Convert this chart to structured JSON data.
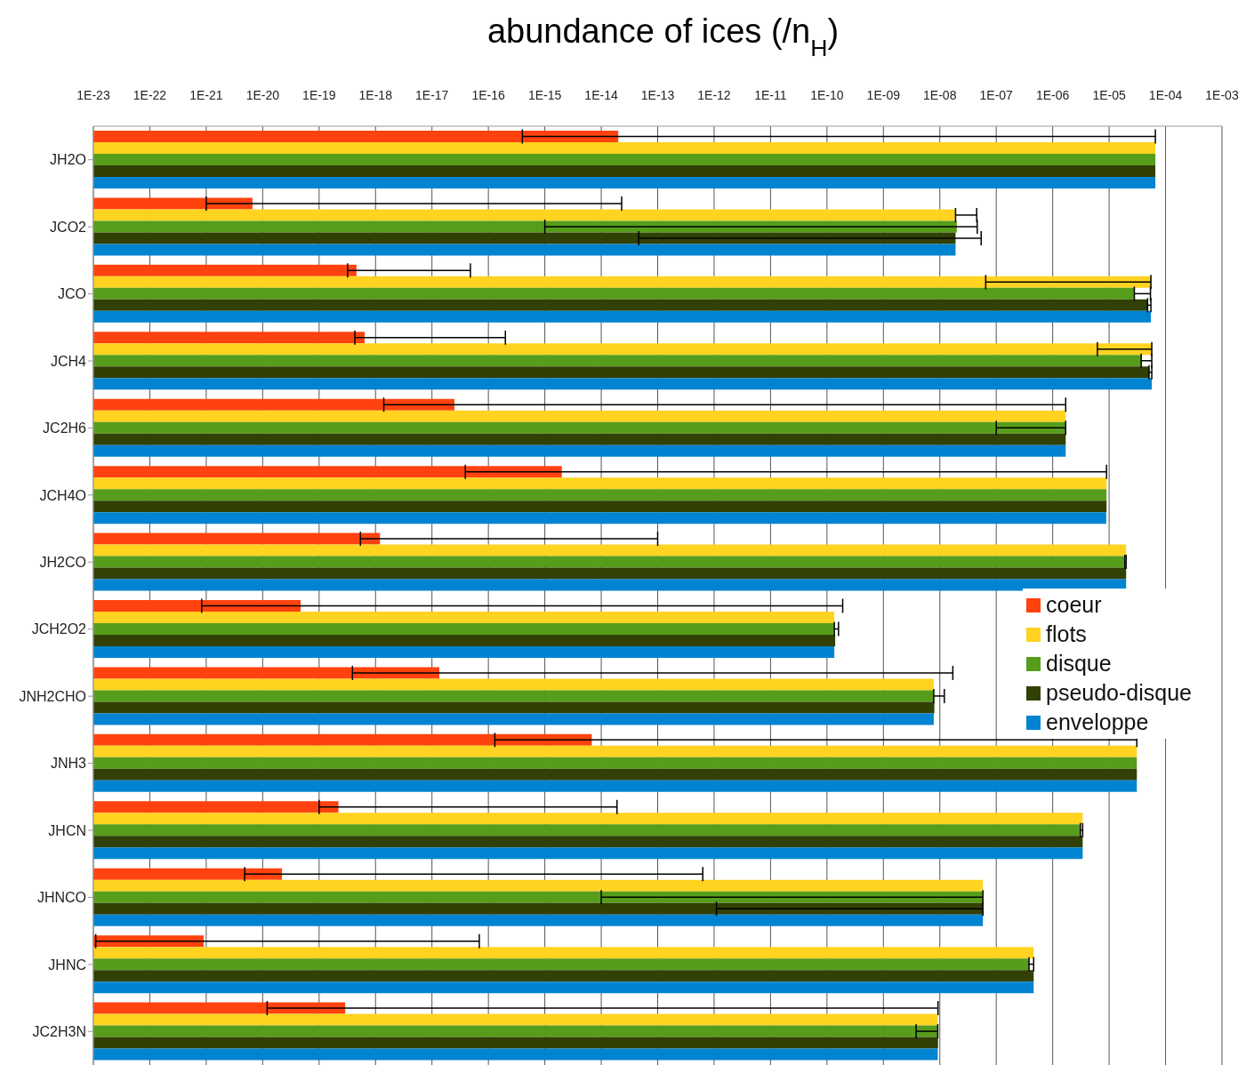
{
  "chart_data": {
    "type": "bar",
    "orientation": "horizontal",
    "log": "x",
    "title": "abundance of ices (/n$_{H}$)",
    "categories": [
      "JH2O",
      "JCO2",
      "JCO",
      "JCH4",
      "JC2H6",
      "JCH4O",
      "JH2CO",
      "JCH2O2",
      "JNH2CHO",
      "JNH3",
      "JHCN",
      "JHNCO",
      "JHNC",
      "JC2H3N"
    ],
    "xlim": [
      1e-23,
      0.001
    ],
    "xticks": [
      {
        "value": 1e-23,
        "label": "1E-23"
      },
      {
        "value": 1e-22,
        "label": "1E-22"
      },
      {
        "value": 1e-21,
        "label": "1E-21"
      },
      {
        "value": 1e-20,
        "label": "1E-20"
      },
      {
        "value": 1e-19,
        "label": "1E-19"
      },
      {
        "value": 1e-18,
        "label": "1E-18"
      },
      {
        "value": 1e-17,
        "label": "1E-17"
      },
      {
        "value": 1e-16,
        "label": "1E-16"
      },
      {
        "value": 1e-15,
        "label": "1E-15"
      },
      {
        "value": 1e-14,
        "label": "1E-14"
      },
      {
        "value": 1e-13,
        "label": "1E-13"
      },
      {
        "value": 1e-12,
        "label": "1E-12"
      },
      {
        "value": 1e-11,
        "label": "1E-11"
      },
      {
        "value": 1e-10,
        "label": "1E-10"
      },
      {
        "value": 1e-09,
        "label": "1E-09"
      },
      {
        "value": 1e-08,
        "label": "1E-08"
      },
      {
        "value": 1e-07,
        "label": "1E-07"
      },
      {
        "value": 1e-06,
        "label": "1E-06"
      },
      {
        "value": 1e-05,
        "label": "1E-05"
      },
      {
        "value": 0.0001,
        "label": "1E-04"
      },
      {
        "value": 0.001,
        "label": "1E-03"
      }
    ],
    "grid": "x",
    "legend": "right",
    "series": [
      {
        "name": "coeur",
        "color": "#ff420e",
        "values": [
          2e-14,
          6.6e-21,
          4.6e-19,
          6.4e-19,
          2.5e-17,
          2e-15,
          1.2e-18,
          4.7e-20,
          1.35e-17,
          6.8e-15,
          2.2e-19,
          2.2e-20,
          9e-22,
          2.9e-19
        ],
        "errors": [
          [
            4e-16,
            6.6e-05
          ],
          [
            1e-21,
            2.3e-14
          ],
          [
            3.2e-19,
            4.8e-17
          ],
          [
            4.3e-19,
            2e-16
          ],
          [
            1.4e-18,
            1.7e-06
          ],
          [
            3.9e-17,
            9e-06
          ],
          [
            5.4e-19,
            1e-13
          ],
          [
            8.3e-22,
            1.9e-10
          ],
          [
            3.9e-19,
            1.7e-08
          ],
          [
            1.3e-16,
            3.1e-05
          ],
          [
            1e-19,
            1.9e-14
          ],
          [
            4.8e-21,
            6.3e-13
          ],
          [
            1.1e-23,
            6.9e-17
          ],
          [
            1.2e-20,
            9.3e-09
          ]
        ]
      },
      {
        "name": "flots",
        "color": "#ffd320",
        "values": [
          6.6e-05,
          1.9e-08,
          5.5e-05,
          5.7e-05,
          1.7e-06,
          9e-06,
          2e-05,
          1.35e-10,
          7.8e-09,
          3.1e-05,
          3.4e-06,
          5.8e-08,
          4.6e-07,
          9.2e-09
        ],
        "errors": [
          null,
          [
            1.9e-08,
            4.5e-08
          ],
          [
            6.5e-08,
            5.5e-05
          ],
          [
            6.2e-06,
            5.7e-05
          ],
          null,
          null,
          null,
          null,
          null,
          null,
          null,
          null,
          null,
          null
        ]
      },
      {
        "name": "disque",
        "color": "#579d1c",
        "values": [
          6.6e-05,
          2e-08,
          2.8e-05,
          3.7e-05,
          1.7e-06,
          9e-06,
          1.9e-05,
          1.35e-10,
          7.8e-09,
          3.1e-05,
          3.1e-06,
          5.8e-08,
          3.8e-07,
          9.2e-09
        ],
        "errors": [
          null,
          [
            1e-15,
            4.6e-08
          ],
          [
            2.8e-05,
            5.4e-05
          ],
          [
            3.7e-05,
            5.7e-05
          ],
          [
            1e-07,
            1.7e-06
          ],
          null,
          [
            1.9e-05,
            2e-05
          ],
          [
            1.35e-10,
            1.6e-10
          ],
          [
            7.8e-09,
            1.2e-08
          ],
          null,
          [
            3.1e-06,
            3.4e-06
          ],
          [
            1e-14,
            5.8e-08
          ],
          [
            3.8e-07,
            4.6e-07
          ],
          [
            3.8e-09,
            9.2e-09
          ]
        ]
      },
      {
        "name": "pseudo-disque",
        "color": "#314004",
        "values": [
          6.6e-05,
          1.9e-08,
          4.8e-05,
          5.1e-05,
          1.7e-06,
          9e-06,
          2e-05,
          1.4e-10,
          8e-09,
          3.1e-05,
          3.4e-06,
          5.8e-08,
          4.6e-07,
          9.3e-09
        ],
        "errors": [
          null,
          [
            4.6e-14,
            5.4e-08
          ],
          [
            4.8e-05,
            5.5e-05
          ],
          [
            5.1e-05,
            5.7e-05
          ],
          null,
          null,
          null,
          null,
          null,
          null,
          null,
          [
            1.1e-12,
            5.8e-08
          ],
          null,
          null
        ]
      },
      {
        "name": "enveloppe",
        "color": "#0084d1",
        "values": [
          6.6e-05,
          1.9e-08,
          5.5e-05,
          5.7e-05,
          1.7e-06,
          8.9e-06,
          2e-05,
          1.35e-10,
          7.8e-09,
          3.1e-05,
          3.4e-06,
          5.8e-08,
          4.6e-07,
          9.2e-09
        ]
      }
    ]
  }
}
